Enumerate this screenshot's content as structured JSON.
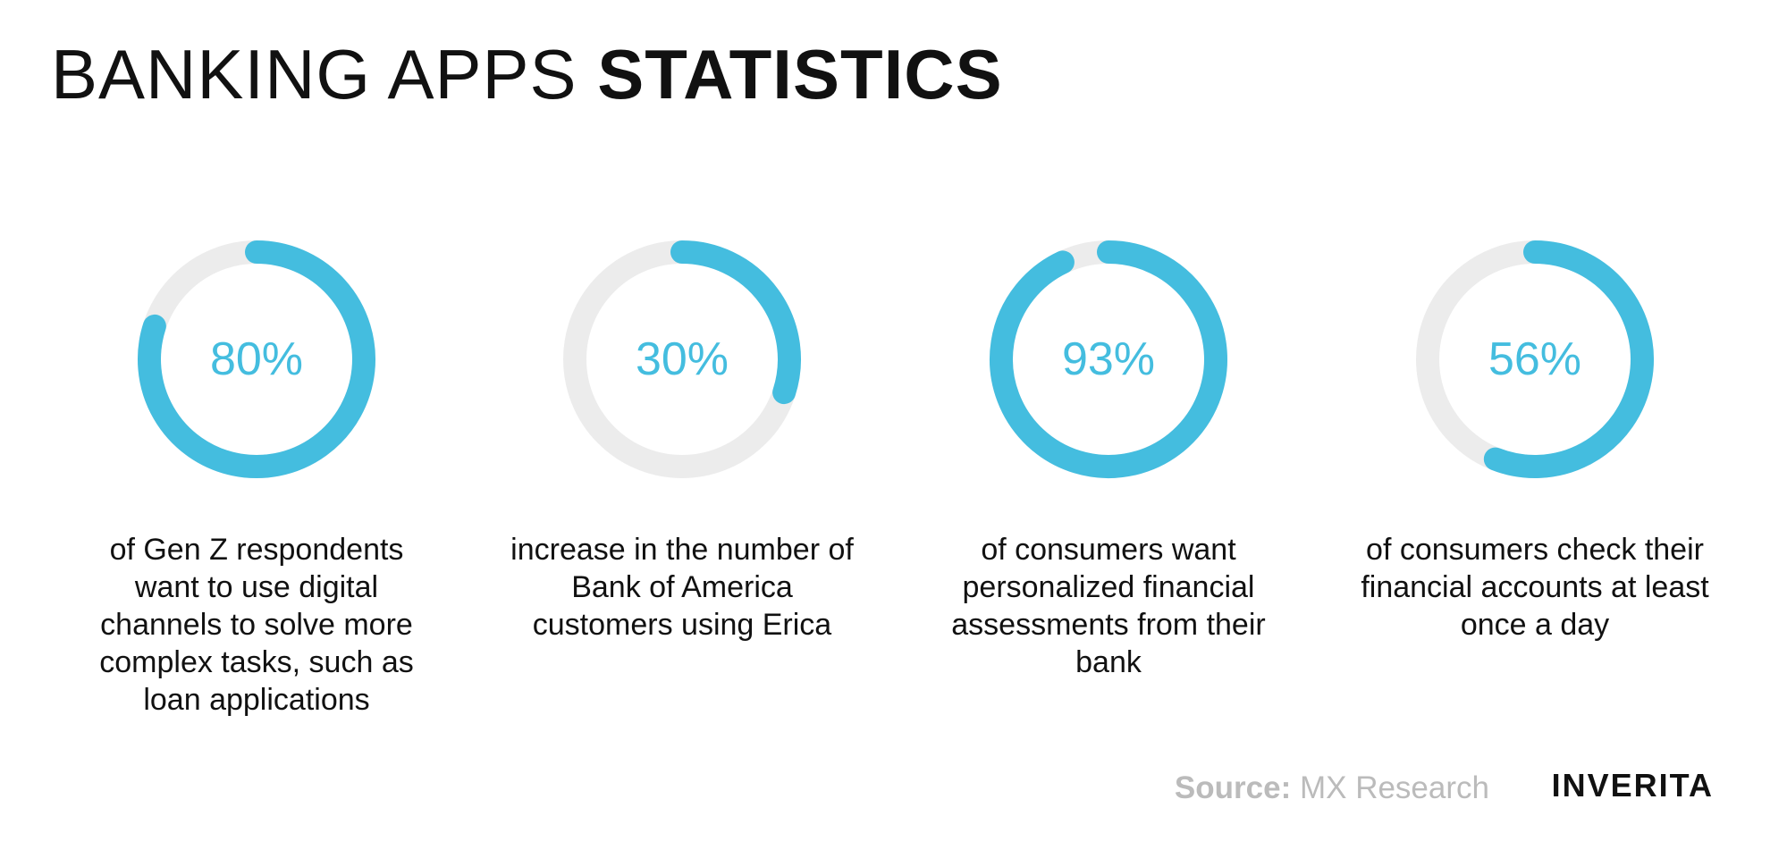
{
  "header": {
    "title_light": "BANKING APPS",
    "title_bold": "STATISTICS"
  },
  "colors": {
    "accent": "#44bddf",
    "track": "#ececec",
    "source_text": "#bbbbbb"
  },
  "chart_data": [
    {
      "type": "donut",
      "value": 80,
      "label": "80%",
      "description": "of Gen Z respondents want to use digital channels to solve more complex tasks, such as loan applications"
    },
    {
      "type": "donut",
      "value": 30,
      "label": "30%",
      "description": "increase in the number of Bank of America customers using Erica"
    },
    {
      "type": "donut",
      "value": 93,
      "label": "93%",
      "description": "of consumers want personalized financial assessments from their bank"
    },
    {
      "type": "donut",
      "value": 56,
      "label": "56%",
      "description": "of consumers check their financial accounts at least once a day"
    }
  ],
  "footer": {
    "source_label": "Source:",
    "source_value": "MX Research",
    "logo": "INVERITA"
  }
}
